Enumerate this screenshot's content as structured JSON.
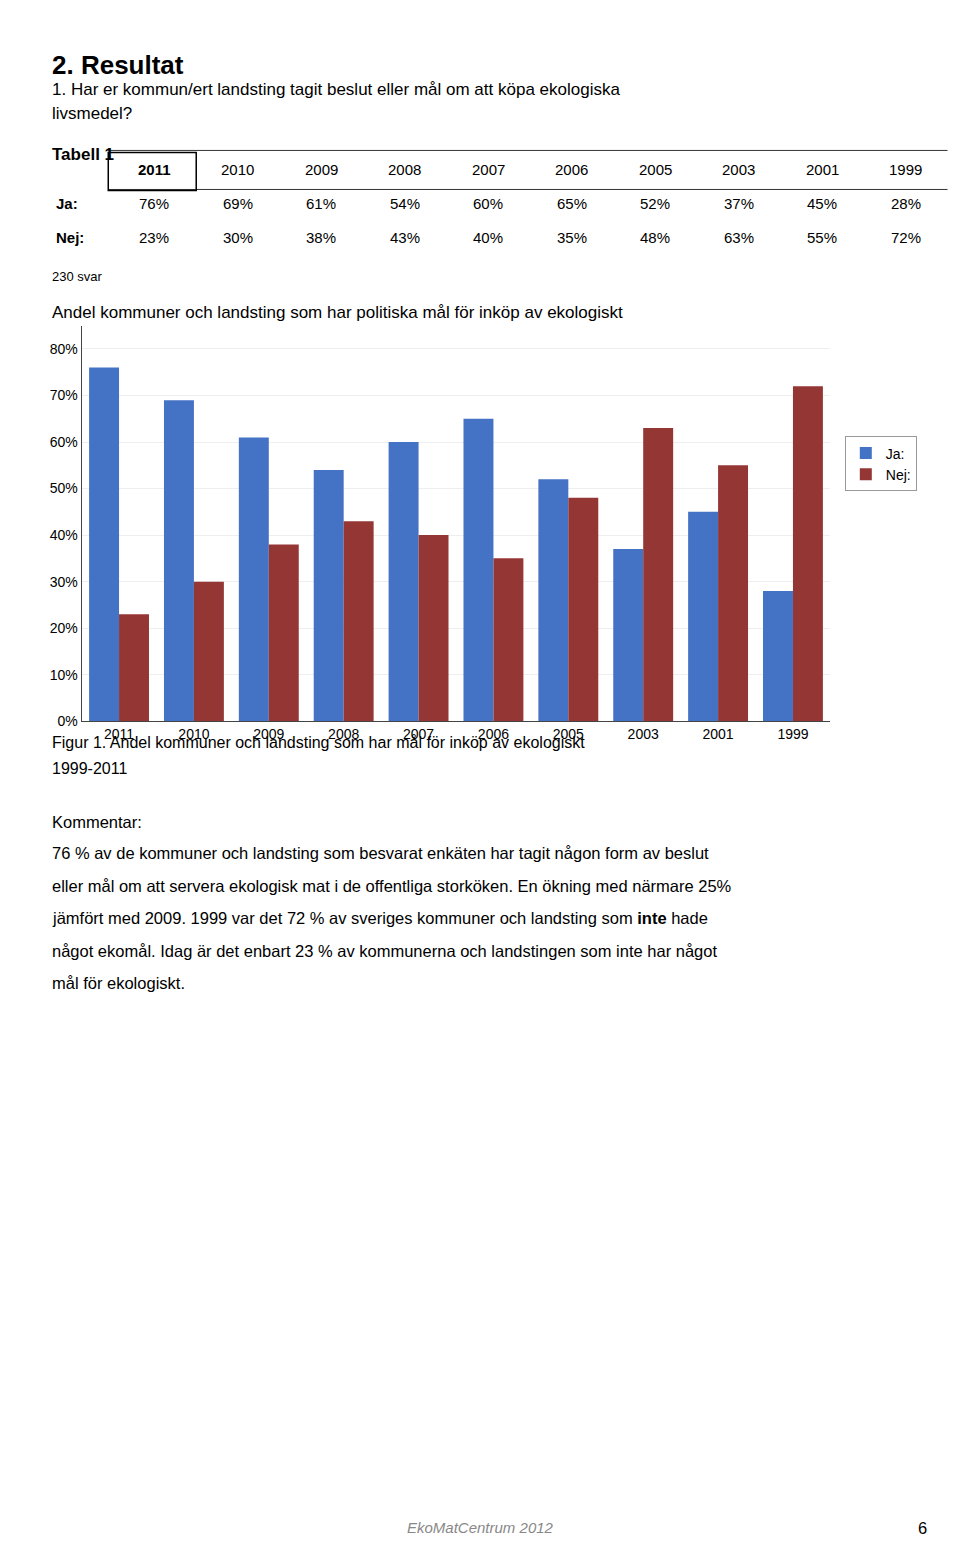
{
  "page": {
    "heading": "2. Resultat",
    "question": [
      "1. Har er kommun/ert landsting tagit beslut eller mål om att köpa ekologiska",
      "livsmedel?"
    ],
    "table_title": "Tabell 1",
    "table_note": "230 svar",
    "caption": [
      "Figur 1. Andel kommuner och landsting som har mål för inköp av ekologiskt",
      "1999-2011"
    ],
    "comment_title": "Kommentar:",
    "comment": [
      [
        "76 % av de kommuner och landsting som besvarat enkäten har tagit någon form av beslut"
      ],
      [
        "eller mål om att servera ekologisk mat i de offentliga storköken. En ökning med närmare 25%"
      ],
      [
        "jämfört med 2009. 1999 var det 72 % av sveriges kommuner och landsting som ",
        "inte",
        " hade"
      ],
      [
        "något ekomål. Idag är det enbart 23 % av kommunerna och landstingen som inte har något"
      ],
      [
        "mål för ekologiskt."
      ]
    ],
    "footer": "EkoMatCentrum 2012",
    "page_number": "6"
  },
  "table": {
    "columns": [
      "2011",
      "2010",
      "2009",
      "2008",
      "2007",
      "2006",
      "2005",
      "2003",
      "2001",
      "1999"
    ],
    "rows": [
      {
        "name": "Ja:",
        "values": [
          76,
          69,
          61,
          54,
          60,
          65,
          52,
          37,
          45,
          28
        ],
        "value_labels": [
          "76%",
          "69%",
          "61%",
          "54%",
          "60%",
          "65%",
          "52%",
          "37%",
          "45%",
          "28%"
        ]
      },
      {
        "name": "Nej:",
        "values": [
          23,
          30,
          38,
          43,
          40,
          35,
          48,
          63,
          55,
          72
        ],
        "value_labels": [
          "23%",
          "30%",
          "38%",
          "43%",
          "40%",
          "35%",
          "48%",
          "63%",
          "55%",
          "72%"
        ]
      }
    ]
  },
  "chart_data": {
    "type": "bar",
    "title": "Andel kommuner och landsting som har politiska mål för inköp av ekologiskt",
    "categories": [
      "2011",
      "2010",
      "2009",
      "2008",
      "2007",
      "2006",
      "2005",
      "2003",
      "2001",
      "1999"
    ],
    "series": [
      {
        "name": "Ja:",
        "color": "#4472C4",
        "values": [
          0.76,
          0.69,
          0.61,
          0.54,
          0.6,
          0.65,
          0.52,
          0.37,
          0.45,
          0.28
        ]
      },
      {
        "name": "Nej:",
        "color": "#943634",
        "values": [
          0.23,
          0.3,
          0.38,
          0.43,
          0.4,
          0.35,
          0.48,
          0.63,
          0.55,
          0.72
        ]
      }
    ],
    "ylim": [
      0,
      0.85
    ],
    "yticks": [
      {
        "value": 0.0,
        "label": "0%"
      },
      {
        "value": 0.1,
        "label": "10%"
      },
      {
        "value": 0.2,
        "label": "20%"
      },
      {
        "value": 0.3,
        "label": "30%"
      },
      {
        "value": 0.4,
        "label": "40%"
      },
      {
        "value": 0.5,
        "label": "50%"
      },
      {
        "value": 0.6,
        "label": "60%"
      },
      {
        "value": 0.7,
        "label": "70%"
      },
      {
        "value": 0.8,
        "label": "80%"
      }
    ],
    "grid": true,
    "legend": "right"
  }
}
